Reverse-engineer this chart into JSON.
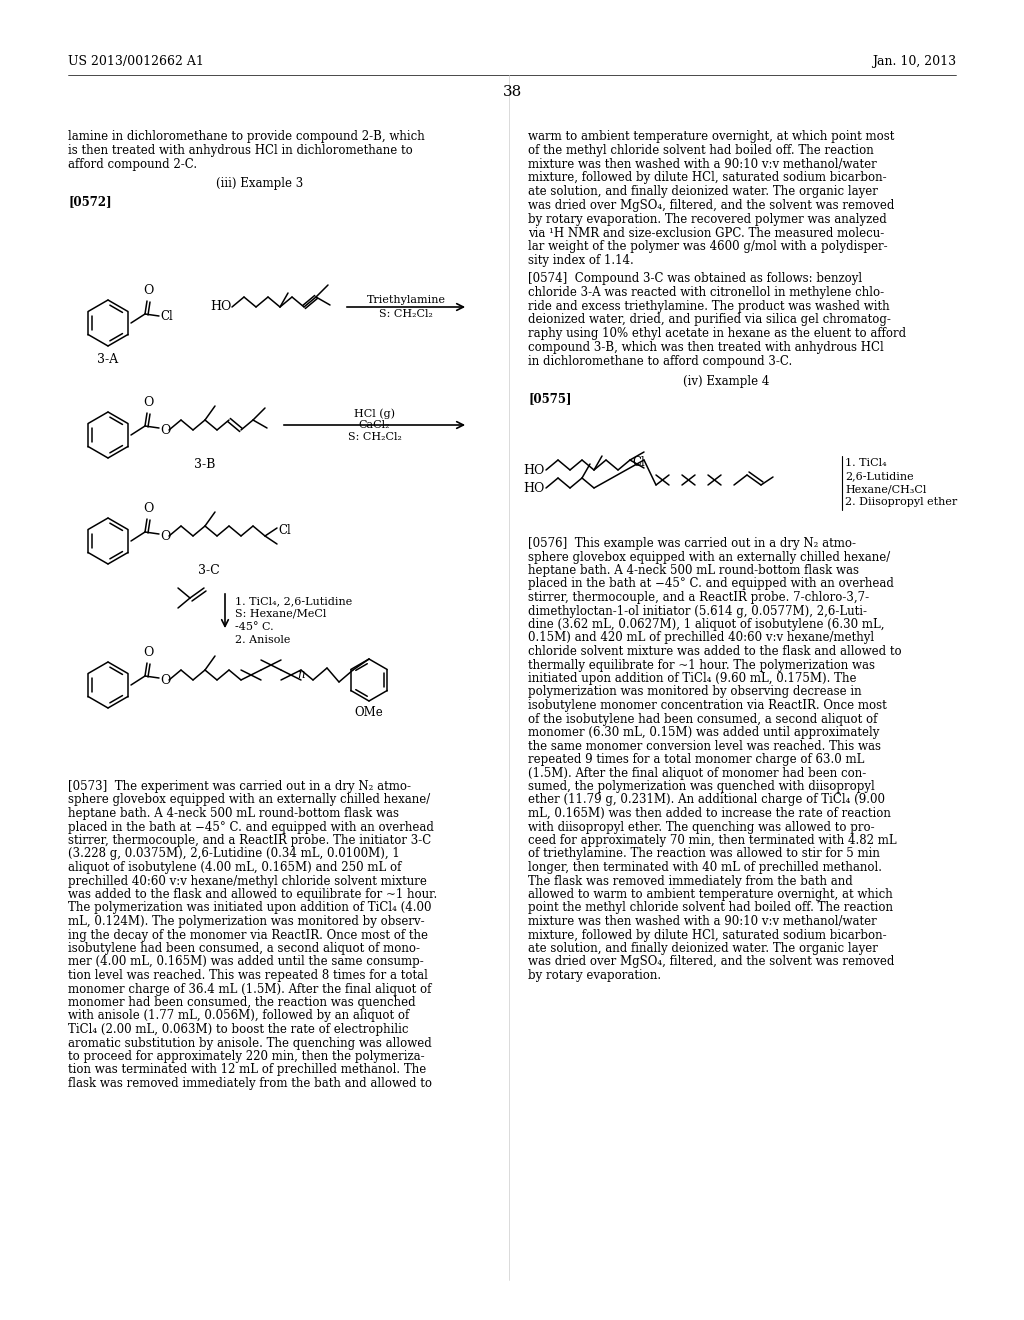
{
  "page_header_left": "US 2013/0012662 A1",
  "page_header_right": "Jan. 10, 2013",
  "page_number": "38",
  "bg_color": "#ffffff",
  "left_col_top_text": [
    "lamine in dichloromethane to provide compound 2-B, which",
    "is then treated with anhydrous HCl in dichloromethane to",
    "afford compound 2-C."
  ],
  "left_col_subtitle": "(iii) Example 3",
  "left_col_paragraph_tag": "[0572]",
  "right_col_top_text": [
    "warm to ambient temperature overnight, at which point most",
    "of the methyl chloride solvent had boiled off. The reaction",
    "mixture was then washed with a 90:10 v:v methanol/water",
    "mixture, followed by dilute HCl, saturated sodium bicarbon-",
    "ate solution, and finally deionized water. The organic layer",
    "was dried over MgSO₄, filtered, and the solvent was removed",
    "by rotary evaporation. The recovered polymer was analyzed",
    "via ¹H NMR and size-exclusion GPC. The measured molecu-",
    "lar weight of the polymer was 4600 g/mol with a polydisper-",
    "sity index of 1.14."
  ],
  "right_col_para_0574_lines": [
    "[0574]  Compound 3-C was obtained as follows: benzoyl",
    "chloride 3-A was reacted with citronellol in methylene chlo-",
    "ride and excess triethylamine. The product was washed with",
    "deionized water, dried, and purified via silica gel chromatog-",
    "raphy using 10% ethyl acetate in hexane as the eluent to afford",
    "compound 3-B, which was then treated with anhydrous HCl",
    "in dichloromethane to afford compound 3-C."
  ],
  "right_col_subtitle2": "(iv) Example 4",
  "right_col_para_tag2": "[0575]",
  "right_col_para_0576_lines": [
    "[0576]  This example was carried out in a dry N₂ atmo-",
    "sphere glovebox equipped with an externally chilled hexane/",
    "heptane bath. A 4-neck 500 mL round-bottom flask was",
    "placed in the bath at −45° C. and equipped with an overhead",
    "stirrer, thermocouple, and a ReactIR probe. 7-chloro-3,7-",
    "dimethyloctan-1-ol initiator (5.614 g, 0.0577M), 2,6-Luti-",
    "dine (3.62 mL, 0.0627M), 1 aliquot of isobutylene (6.30 mL,",
    "0.15M) and 420 mL of prechilled 40:60 v:v hexane/methyl",
    "chloride solvent mixture was added to the flask and allowed to",
    "thermally equilibrate for ~1 hour. The polymerization was",
    "initiated upon addition of TiCl₄ (9.60 mL, 0.175M). The",
    "polymerization was monitored by observing decrease in",
    "isobutylene monomer concentration via ReactIR. Once most",
    "of the isobutylene had been consumed, a second aliquot of",
    "monomer (6.30 mL, 0.15M) was added until approximately",
    "the same monomer conversion level was reached. This was",
    "repeated 9 times for a total monomer charge of 63.0 mL",
    "(1.5M). After the final aliquot of monomer had been con-",
    "sumed, the polymerization was quenched with diisopropyl",
    "ether (11.79 g, 0.231M). An additional charge of TiCl₄ (9.00",
    "mL, 0.165M) was then added to increase the rate of reaction",
    "with diisopropyl ether. The quenching was allowed to pro-",
    "ceed for approximately 70 min, then terminated with 4.82 mL",
    "of triethylamine. The reaction was allowed to stir for 5 min",
    "longer, then terminated with 40 mL of prechilled methanol.",
    "The flask was removed immediately from the bath and",
    "allowed to warm to ambient temperature overnight, at which",
    "point the methyl chloride solvent had boiled off. The reaction",
    "mixture was then washed with a 90:10 v:v methanol/water",
    "mixture, followed by dilute HCl, saturated sodium bicarbon-",
    "ate solution, and finally deionized water. The organic layer",
    "was dried over MgSO₄, filtered, and the solvent was removed",
    "by rotary evaporation."
  ],
  "left_col_para_0573_lines": [
    "[0573]  The experiment was carried out in a dry N₂ atmo-",
    "sphere glovebox equipped with an externally chilled hexane/",
    "heptane bath. A 4-neck 500 mL round-bottom flask was",
    "placed in the bath at −45° C. and equipped with an overhead",
    "stirrer, thermocouple, and a ReactIR probe. The initiator 3-C",
    "(3.228 g, 0.0375M), 2,6-Lutidine (0.34 mL, 0.0100M), 1",
    "aliquot of isobutylene (4.00 mL, 0.165M) and 250 mL of",
    "prechilled 40:60 v:v hexane/methyl chloride solvent mixture",
    "was added to the flask and allowed to equilibrate for ~1 hour.",
    "The polymerization was initiated upon addition of TiCl₄ (4.00",
    "mL, 0.124M). The polymerization was monitored by observ-",
    "ing the decay of the monomer via ReactIR. Once most of the",
    "isobutylene had been consumed, a second aliquot of mono-",
    "mer (4.00 mL, 0.165M) was added until the same consump-",
    "tion level was reached. This was repeated 8 times for a total",
    "monomer charge of 36.4 mL (1.5M). After the final aliquot of",
    "monomer had been consumed, the reaction was quenched",
    "with anisole (1.77 mL, 0.056M), followed by an aliquot of",
    "TiCl₄ (2.00 mL, 0.063M) to boost the rate of electrophilic",
    "aromatic substitution by anisole. The quenching was allowed",
    "to proceed for approximately 220 min, then the polymeriza-",
    "tion was terminated with 12 mL of prechilled methanol. The",
    "flask was removed immediately from the bath and allowed to"
  ]
}
